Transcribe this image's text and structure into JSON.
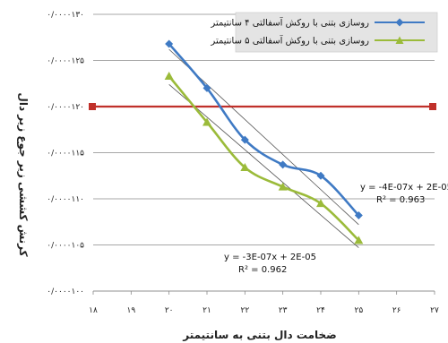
{
  "chart_data": {
    "type": "line",
    "title": "",
    "xlabel": "ضخامت دال بتنی به سانتیمتر",
    "ylabel": "کرنش کششی زیر جوع زیر دال",
    "xlim": [
      18,
      27
    ],
    "ylim": [
      1e-05,
      1.3e-05
    ],
    "x_ticks": [
      18,
      19,
      20,
      21,
      22,
      23,
      24,
      25,
      26,
      27
    ],
    "x_tick_labels": [
      "۱۸",
      "۱۹",
      "۲۰",
      "۲۱",
      "۲۲",
      "۲۳",
      "۲۴",
      "۲۵",
      "۲۶",
      "۲۷"
    ],
    "y_ticks": [
      1e-05,
      1.05e-05,
      1.1e-05,
      1.15e-05,
      1.2e-05,
      1.25e-05,
      1.3e-05
    ],
    "y_tick_labels": [
      "۰/۰۰۰۰۱۰۰",
      "۰/۰۰۰۰۱۰۵",
      "۰/۰۰۰۰۱۱۰",
      "۰/۰۰۰۰۱۱۵",
      "۰/۰۰۰۰۱۲۰",
      "۰/۰۰۰۰۱۲۵",
      "۰/۰۰۰۰۱۳۰"
    ],
    "grid": "horizontal",
    "legend_position": "top-right",
    "series": [
      {
        "name": "روسازی بتنی با روکش آسفالتی ۴ سانتیمتر",
        "color": "#3f7ac4",
        "marker": "diamond",
        "x": [
          20,
          21,
          22,
          23,
          24,
          25
        ],
        "y": [
          1.268e-05,
          1.22e-05,
          1.164e-05,
          1.137e-05,
          1.125e-05,
          1.082e-05
        ]
      },
      {
        "name": "روسازی بتنی با روکش آسفالتی ۵ سانتیمتر",
        "color": "#9bbb3a",
        "marker": "triangle",
        "x": [
          20,
          21,
          22,
          23,
          24,
          25
        ],
        "y": [
          1.233e-05,
          1.183e-05,
          1.134e-05,
          1.113e-05,
          1.095e-05,
          1.055e-05
        ]
      }
    ],
    "trendlines": [
      {
        "series": 0,
        "x": [
          20,
          25
        ],
        "y": [
          1.262e-05,
          1.072e-05
        ]
      },
      {
        "series": 1,
        "x": [
          20,
          25
        ],
        "y": [
          1.224e-05,
          1.047e-05
        ]
      }
    ],
    "reference_line": {
      "y": 1.2e-05,
      "color": "#c0302a"
    },
    "annotations": [
      {
        "line1": "y = -4E-07x + 2E-05",
        "line2": "R² = 0.963"
      },
      {
        "line1": "y = -3E-07x + 2E-05",
        "line2": "R² = 0.962"
      }
    ]
  }
}
